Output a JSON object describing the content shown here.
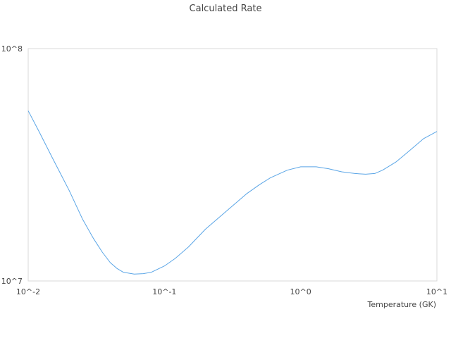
{
  "chart_data": {
    "type": "line",
    "title": "Calculated Rate",
    "xlabel": "Temperature (GK)",
    "ylabel": "",
    "x_scale": "log",
    "y_scale": "log",
    "xlim": [
      0.01,
      10
    ],
    "ylim": [
      10000000,
      100000000
    ],
    "x_ticks": [
      "10^-2",
      "10^-1",
      "10^0",
      "10^1"
    ],
    "y_ticks": [
      "10^7",
      "10^8"
    ],
    "grid": false,
    "line_color": "#5aa5e6",
    "series": [
      {
        "name": "",
        "points": [
          [
            0.01,
            54000000
          ],
          [
            0.012,
            44000000
          ],
          [
            0.015,
            34000000
          ],
          [
            0.02,
            24500000
          ],
          [
            0.025,
            18500000
          ],
          [
            0.03,
            15300000
          ],
          [
            0.035,
            13300000
          ],
          [
            0.04,
            12000000
          ],
          [
            0.045,
            11300000
          ],
          [
            0.05,
            10900000
          ],
          [
            0.06,
            10700000
          ],
          [
            0.07,
            10750000
          ],
          [
            0.08,
            10900000
          ],
          [
            0.1,
            11600000
          ],
          [
            0.12,
            12500000
          ],
          [
            0.15,
            14000000
          ],
          [
            0.2,
            16700000
          ],
          [
            0.3,
            20500000
          ],
          [
            0.4,
            23700000
          ],
          [
            0.5,
            26000000
          ],
          [
            0.6,
            27800000
          ],
          [
            0.8,
            30000000
          ],
          [
            1.0,
            31000000
          ],
          [
            1.3,
            31000000
          ],
          [
            1.6,
            30400000
          ],
          [
            2.0,
            29500000
          ],
          [
            2.5,
            29000000
          ],
          [
            3.0,
            28800000
          ],
          [
            3.5,
            29000000
          ],
          [
            4.0,
            30000000
          ],
          [
            5.0,
            32500000
          ],
          [
            6.0,
            35500000
          ],
          [
            8.0,
            41000000
          ],
          [
            10.0,
            44000000
          ]
        ]
      }
    ]
  }
}
